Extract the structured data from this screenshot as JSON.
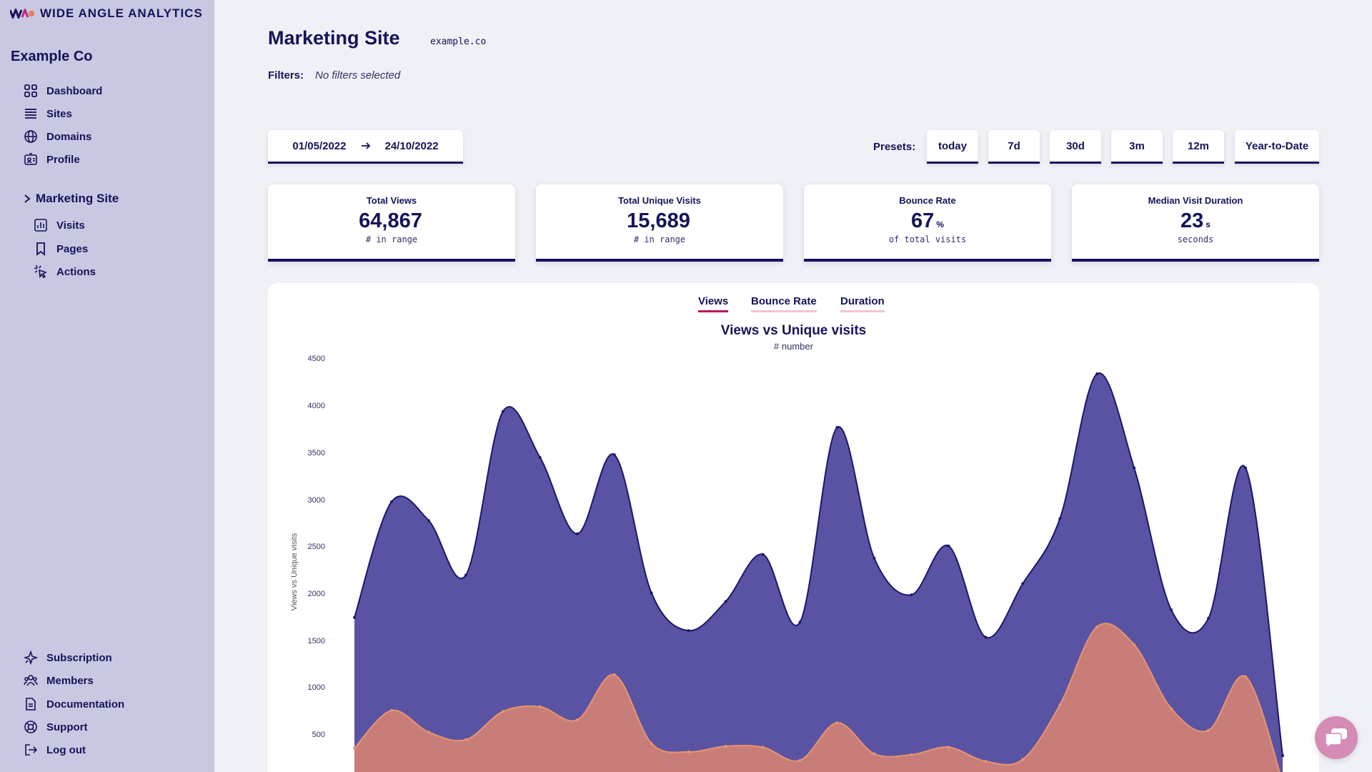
{
  "brand": {
    "name": "WIDE ANGLE ANALYTICS"
  },
  "sidebar": {
    "org": "Example Co",
    "nav": [
      {
        "label": "Dashboard",
        "icon": "grid-icon"
      },
      {
        "label": "Sites",
        "icon": "list-icon"
      },
      {
        "label": "Domains",
        "icon": "globe-icon"
      },
      {
        "label": "Profile",
        "icon": "id-card-icon"
      }
    ],
    "site": {
      "label": "Marketing Site",
      "items": [
        {
          "label": "Visits",
          "icon": "bar-chart-icon"
        },
        {
          "label": "Pages",
          "icon": "bookmark-icon"
        },
        {
          "label": "Actions",
          "icon": "pointer-click-icon"
        }
      ]
    },
    "bottom": [
      {
        "label": "Subscription",
        "icon": "sparkle-icon"
      },
      {
        "label": "Members",
        "icon": "users-icon"
      },
      {
        "label": "Documentation",
        "icon": "document-icon"
      },
      {
        "label": "Support",
        "icon": "lifebuoy-icon"
      },
      {
        "label": "Log out",
        "icon": "logout-icon"
      }
    ]
  },
  "header": {
    "title": "Marketing Site",
    "domain": "example.co"
  },
  "filters": {
    "label": "Filters:",
    "value": "No filters selected"
  },
  "date_range": {
    "start": "01/05/2022",
    "end": "24/10/2022"
  },
  "presets": {
    "label": "Presets:",
    "items": [
      "today",
      "7d",
      "30d",
      "3m",
      "12m",
      "Year-to-Date"
    ]
  },
  "stats": [
    {
      "title": "Total Views",
      "value": "64,867",
      "unit": "",
      "sub": "# in range"
    },
    {
      "title": "Total Unique Visits",
      "value": "15,689",
      "unit": "",
      "sub": "# in range"
    },
    {
      "title": "Bounce Rate",
      "value": "67",
      "unit": "%",
      "sub": "of total visits"
    },
    {
      "title": "Median Visit Duration",
      "value": "23",
      "unit": "s",
      "sub": "seconds"
    }
  ],
  "chart_tabs": [
    {
      "label": "Views",
      "active": true
    },
    {
      "label": "Bounce Rate",
      "active": false
    },
    {
      "label": "Duration",
      "active": false
    }
  ],
  "chart_data": {
    "type": "area",
    "title": "Views vs Unique visits",
    "subtitle": "# number",
    "ylabel": "Views vs Unique visits",
    "xlabel": "",
    "ylim": [
      0,
      4500
    ],
    "yticks": [
      500,
      1000,
      1500,
      2000,
      2500,
      3000,
      3500,
      4000,
      4500
    ],
    "series": [
      {
        "color": "#5a53a4",
        "values": [
          1750,
          2980,
          2780,
          2200,
          3940,
          3450,
          2640,
          3480,
          2010,
          1610,
          1920,
          2420,
          1700,
          3770,
          2380,
          1990,
          2510,
          1540,
          2110,
          2800,
          4340,
          3340,
          1830,
          1740,
          3340,
          280
        ]
      },
      {
        "color": "#c97d78",
        "values": [
          360,
          760,
          530,
          450,
          750,
          800,
          660,
          1140,
          410,
          320,
          380,
          370,
          230,
          630,
          300,
          290,
          370,
          220,
          240,
          820,
          1650,
          1460,
          780,
          550,
          1120,
          0
        ]
      }
    ]
  },
  "chat": {
    "icon": "chat-icon"
  }
}
